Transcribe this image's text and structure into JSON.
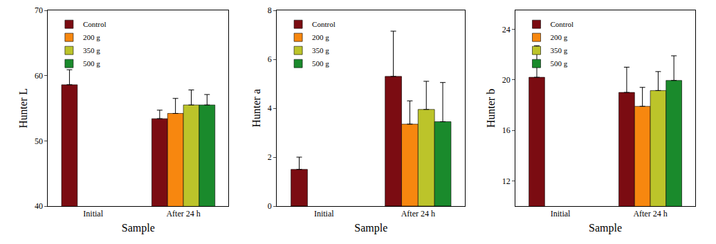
{
  "chart_data": [
    {
      "type": "bar",
      "x_label": "Sample",
      "y_label": "Hunter L",
      "categories": [
        "Initial",
        "After 24 h"
      ],
      "series": [
        {
          "name": "Control",
          "color": "#7b0c12",
          "values": [
            58.6,
            53.4
          ],
          "errors": [
            2.3,
            1.3
          ]
        },
        {
          "name": "200 g",
          "color": "#f7870f",
          "values": [
            null,
            54.2
          ],
          "errors": [
            null,
            2.3
          ]
        },
        {
          "name": "350 g",
          "color": "#bcc42a",
          "values": [
            null,
            55.5
          ],
          "errors": [
            null,
            2.3
          ]
        },
        {
          "name": "500 g",
          "color": "#1a8a2c",
          "values": [
            null,
            55.5
          ],
          "errors": [
            null,
            1.6
          ]
        }
      ],
      "ylim": [
        40,
        70
      ],
      "yticks": [
        40,
        50,
        60,
        70
      ],
      "grid": false,
      "legend": "upper left"
    },
    {
      "type": "bar",
      "x_label": "Sample",
      "y_label": "Hunter a",
      "categories": [
        "Initial",
        "After 24 h"
      ],
      "series": [
        {
          "name": "Control",
          "color": "#7b0c12",
          "values": [
            1.5,
            5.3
          ],
          "errors": [
            0.5,
            1.85
          ]
        },
        {
          "name": "200 g",
          "color": "#f7870f",
          "values": [
            null,
            3.35
          ],
          "errors": [
            null,
            0.95
          ]
        },
        {
          "name": "350 g",
          "color": "#bcc42a",
          "values": [
            null,
            3.95
          ],
          "errors": [
            null,
            1.15
          ]
        },
        {
          "name": "500 g",
          "color": "#1a8a2c",
          "values": [
            null,
            3.45
          ],
          "errors": [
            null,
            1.6
          ]
        }
      ],
      "ylim": [
        0,
        8
      ],
      "yticks": [
        0,
        2,
        4,
        6,
        8
      ],
      "grid": false,
      "legend": "upper left"
    },
    {
      "type": "bar",
      "x_label": "Sample",
      "y_label": "Hunter b",
      "categories": [
        "Initial",
        "After 24 h"
      ],
      "series": [
        {
          "name": "Control",
          "color": "#7b0c12",
          "values": [
            20.2,
            19.0
          ],
          "errors": [
            2.5,
            2.0
          ]
        },
        {
          "name": "200 g",
          "color": "#f7870f",
          "values": [
            null,
            17.9
          ],
          "errors": [
            null,
            1.5
          ]
        },
        {
          "name": "350 g",
          "color": "#bcc42a",
          "values": [
            null,
            19.15
          ],
          "errors": [
            null,
            1.5
          ]
        },
        {
          "name": "500 g",
          "color": "#1a8a2c",
          "values": [
            null,
            19.95
          ],
          "errors": [
            null,
            1.95
          ]
        }
      ],
      "ylim": [
        10,
        25.5
      ],
      "yticks": [
        12,
        16,
        20,
        24
      ],
      "grid": false,
      "legend": "upper left"
    }
  ]
}
